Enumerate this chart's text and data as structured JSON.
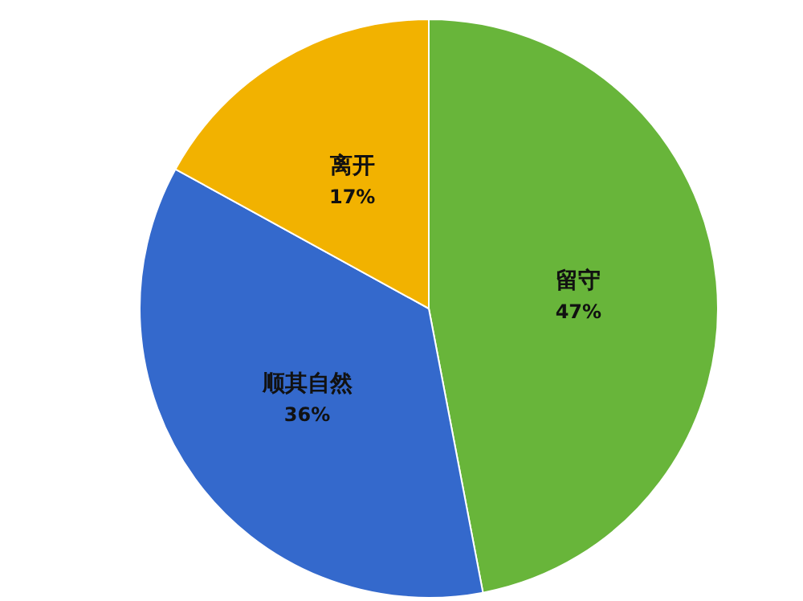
{
  "chart_data": {
    "type": "pie",
    "categories": [
      "留守",
      "顺其自然",
      "离开"
    ],
    "values": [
      47,
      36,
      17
    ],
    "value_labels": [
      "47%",
      "36%",
      "17%"
    ],
    "colors": [
      "#68b53a",
      "#3469cc",
      "#f2b200"
    ]
  }
}
